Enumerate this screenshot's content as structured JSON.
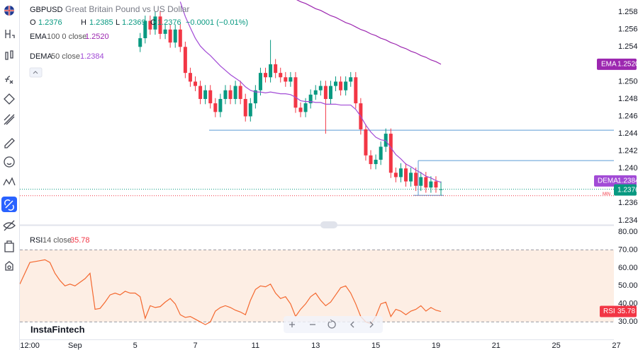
{
  "watermark": "InstaFintech",
  "chart_data": [
    {
      "type": "candlestick",
      "symbol": "GBPUSD",
      "description": "Great Britain Pound vs US Dollar",
      "ohlc_labels": [
        "O",
        "H",
        "L",
        "C"
      ],
      "change": "−0.0001 (−0.01%)",
      "up_color": "#089981",
      "down_color": "#f23645",
      "x": [
        28,
        29,
        30,
        31,
        32,
        33,
        34,
        35,
        36,
        37,
        38,
        39,
        40,
        41,
        42,
        43,
        44,
        45,
        46,
        47,
        48,
        49,
        50,
        51,
        52,
        53,
        54,
        55,
        56,
        57,
        58,
        59,
        60,
        61,
        62,
        63,
        64,
        65,
        66,
        67,
        68,
        69,
        70,
        71,
        72,
        73,
        74,
        75,
        76,
        77,
        78,
        79,
        80,
        81,
        82,
        83,
        84,
        85,
        86,
        87,
        88
      ],
      "open": [
        1.254,
        1.255,
        1.257,
        1.256,
        1.2575,
        1.2555,
        1.256,
        1.2545,
        1.256,
        1.254,
        1.251,
        1.25,
        1.2495,
        1.248,
        1.249,
        1.2475,
        1.2465,
        1.248,
        1.249,
        1.248,
        1.2495,
        1.248,
        1.246,
        1.2475,
        1.249,
        1.251,
        1.2505,
        1.252,
        1.251,
        1.2505,
        1.25,
        1.2505,
        1.247,
        1.2465,
        1.2475,
        1.2485,
        1.249,
        1.2495,
        1.248,
        1.2495,
        1.25,
        1.249,
        1.25,
        1.2505,
        1.2475,
        1.2445,
        1.2415,
        1.2405,
        1.241,
        1.2425,
        1.244,
        1.2395,
        1.239,
        1.24,
        1.2385,
        1.2395,
        1.238,
        1.239,
        1.2378,
        1.2385,
        1.2376
      ],
      "high": [
        1.2556,
        1.2576,
        1.2576,
        1.2581,
        1.2581,
        1.2566,
        1.2566,
        1.2566,
        1.2566,
        1.2546,
        1.2516,
        1.2506,
        1.2501,
        1.2496,
        1.2496,
        1.2481,
        1.2486,
        1.2496,
        1.2496,
        1.2501,
        1.2501,
        1.2486,
        1.2481,
        1.2496,
        1.2516,
        1.2516,
        1.2548,
        1.2526,
        1.2516,
        1.2511,
        1.2511,
        1.2511,
        1.2476,
        1.2481,
        1.2491,
        1.2496,
        1.2501,
        1.2501,
        1.2501,
        1.2506,
        1.2506,
        1.2506,
        1.2511,
        1.2511,
        1.2481,
        1.2451,
        1.2421,
        1.2416,
        1.2431,
        1.2446,
        1.2446,
        1.2401,
        1.2406,
        1.2406,
        1.2401,
        1.2401,
        1.2396,
        1.2396,
        1.2391,
        1.2391,
        1.2385
      ],
      "low": [
        1.2534,
        1.2544,
        1.2554,
        1.2554,
        1.2549,
        1.2549,
        1.2539,
        1.2539,
        1.2534,
        1.2504,
        1.2494,
        1.2489,
        1.2474,
        1.2474,
        1.2469,
        1.2459,
        1.2459,
        1.2474,
        1.2474,
        1.2474,
        1.2474,
        1.2454,
        1.2454,
        1.2469,
        1.2484,
        1.2499,
        1.2499,
        1.2504,
        1.2499,
        1.2494,
        1.2494,
        1.2464,
        1.2459,
        1.2459,
        1.2469,
        1.2479,
        1.2484,
        1.244,
        1.2474,
        1.2489,
        1.2484,
        1.2484,
        1.2494,
        1.2469,
        1.2439,
        1.2409,
        1.2399,
        1.2399,
        1.2404,
        1.2419,
        1.2389,
        1.2384,
        1.2384,
        1.2379,
        1.2379,
        1.2374,
        1.2374,
        1.2372,
        1.2372,
        1.2372,
        1.2369
      ],
      "close": [
        1.255,
        1.257,
        1.256,
        1.2575,
        1.2555,
        1.256,
        1.2545,
        1.256,
        1.254,
        1.251,
        1.25,
        1.2495,
        1.248,
        1.249,
        1.2475,
        1.2465,
        1.248,
        1.249,
        1.248,
        1.2495,
        1.248,
        1.246,
        1.2475,
        1.249,
        1.251,
        1.2505,
        1.252,
        1.251,
        1.2505,
        1.25,
        1.2505,
        1.247,
        1.2465,
        1.2475,
        1.2485,
        1.249,
        1.2495,
        1.248,
        1.2495,
        1.25,
        1.249,
        1.25,
        1.2505,
        1.2475,
        1.2445,
        1.2415,
        1.2405,
        1.241,
        1.2425,
        1.244,
        1.2395,
        1.239,
        1.24,
        1.2385,
        1.2395,
        1.238,
        1.239,
        1.2378,
        1.2385,
        1.2378,
        1.2376
      ],
      "series": [
        {
          "name": "EMA",
          "params": "100 0 close",
          "color": "#9c27b0",
          "values": [
            null,
            null,
            null,
            null,
            null,
            null,
            null,
            null,
            null,
            null,
            null,
            null,
            null,
            null,
            null,
            null,
            null,
            null,
            null,
            null,
            null,
            null,
            null,
            null,
            null,
            null,
            null,
            null,
            null,
            null,
            null,
            1.2595,
            1.2592,
            1.259,
            1.2587,
            1.2584,
            1.2582,
            1.2579,
            1.2576,
            1.2574,
            1.2571,
            1.2568,
            1.2566,
            1.2563,
            1.256,
            1.2558,
            1.2555,
            1.2553,
            1.255,
            1.2548,
            1.2545,
            1.2543,
            1.254,
            1.2538,
            1.2535,
            1.2533,
            1.253,
            1.2528,
            1.2525,
            1.2523,
            1.252
          ],
          "value_labels": [
            null,
            null,
            null,
            null,
            null,
            null,
            null,
            null,
            null,
            null,
            null,
            null,
            null,
            null,
            null,
            null,
            null,
            null,
            null,
            null,
            null,
            null,
            null,
            null,
            null,
            null,
            null,
            null,
            null,
            null,
            null,
            null,
            null,
            null,
            null,
            null,
            null,
            null,
            null,
            null,
            null,
            null,
            null,
            null,
            null,
            null,
            null,
            null,
            null,
            null,
            null,
            null,
            null,
            null,
            null,
            null,
            null,
            null,
            null,
            null,
            "1.2520"
          ]
        },
        {
          "name": "DEMA",
          "params": "50 close",
          "color": "#a24bd6",
          "values": [
            null,
            null,
            null,
            null,
            null,
            null,
            null,
            null,
            1.2592,
            1.2575,
            1.2562,
            1.255,
            1.2541,
            1.2535,
            1.253,
            1.2524,
            1.2518,
            1.2513,
            1.2508,
            1.2504,
            1.25,
            1.2494,
            1.249,
            1.2488,
            1.2488,
            1.2487,
            1.2488,
            1.2487,
            1.2486,
            1.2486,
            1.2485,
            1.2482,
            1.2478,
            1.2477,
            1.2477,
            1.2476,
            1.2476,
            1.2474,
            1.2474,
            1.2474,
            1.2473,
            1.2473,
            1.2473,
            1.2468,
            1.246,
            1.245,
            1.2442,
            1.2436,
            1.2433,
            1.2432,
            1.2424,
            1.2416,
            1.2411,
            1.2405,
            1.2402,
            1.2398,
            1.2395,
            1.2391,
            1.2389,
            1.2386,
            1.2384
          ]
        }
      ],
      "levels": [
        1.2444,
        1.2409
      ],
      "level_color": "#5b9bd5",
      "min_label": "MIN",
      "xlim": [
        4,
        122.5
      ],
      "ylim": [
        1.2335,
        1.2594
      ],
      "yticks": [
        {
          "value": 1.258,
          "label": "1.2580"
        },
        {
          "value": 1.256,
          "label": "1.2560"
        },
        {
          "value": 1.254,
          "label": "1.2540"
        },
        {
          "value": 1.25,
          "label": "1.2500"
        },
        {
          "value": 1.248,
          "label": "1.2480"
        },
        {
          "value": 1.246,
          "label": "1.2460"
        },
        {
          "value": 1.244,
          "label": "1.2440"
        },
        {
          "value": 1.242,
          "label": "1.2420"
        },
        {
          "value": 1.24,
          "label": "1.2400"
        },
        {
          "value": 1.236,
          "label": "1.2360"
        },
        {
          "value": 1.234,
          "label": "1.2340"
        }
      ]
    },
    {
      "type": "line",
      "x": [
        4,
        5,
        6,
        7,
        8,
        9,
        10,
        11,
        12,
        13,
        14,
        15,
        16,
        17,
        18,
        19,
        20,
        21,
        22,
        23,
        24,
        25,
        26,
        27,
        28,
        29,
        30,
        31,
        32,
        33,
        34,
        35,
        36,
        37,
        38,
        39,
        40,
        41,
        42,
        43,
        44,
        45,
        46,
        47,
        48,
        49,
        50,
        51,
        52,
        53,
        54,
        55,
        56,
        57,
        58,
        59,
        60,
        61,
        62,
        63,
        64,
        65,
        66,
        67,
        68,
        69,
        70,
        71,
        72,
        73,
        74,
        75,
        76,
        77,
        78,
        79,
        80,
        81,
        82,
        83,
        84,
        85,
        86,
        87,
        88
      ],
      "series": [
        {
          "name": "RSI",
          "params": "14 close",
          "color": "#f4682f",
          "values": [
            51,
            57,
            63,
            63.5,
            64,
            64.5,
            63,
            57,
            53,
            50,
            51,
            50,
            52,
            54,
            57,
            37,
            37.5,
            41,
            45,
            46,
            45,
            47,
            46,
            46,
            44,
            32,
            39,
            38,
            38.5,
            41,
            43,
            40,
            34,
            32.5,
            33,
            31.5,
            30,
            28.5,
            30,
            36,
            38,
            39,
            38,
            36.5,
            35.5,
            34,
            42,
            48,
            50,
            49.5,
            51,
            46,
            43,
            44,
            40,
            33,
            37,
            40,
            44,
            46,
            42,
            39,
            41,
            45,
            49,
            50,
            46,
            40,
            33,
            30,
            29,
            33,
            40,
            41,
            33,
            37,
            36,
            34,
            36,
            37,
            39,
            36,
            38,
            36.5,
            35.78
          ]
        }
      ],
      "bands": [
        30,
        70
      ],
      "band_color": "#fdeee4",
      "xlim": [
        4,
        122.5
      ],
      "ylim": [
        20.3,
        83.1
      ],
      "yticks": [
        {
          "value": 80,
          "label": "80.00"
        },
        {
          "value": 70,
          "label": "70.00"
        },
        {
          "value": 60,
          "label": "60.00"
        },
        {
          "value": 50,
          "label": "50.00"
        },
        {
          "value": 40,
          "label": "40.00"
        },
        {
          "value": 30,
          "label": "30.00"
        }
      ],
      "xticks": [
        {
          "value": 6,
          "label": "12:00"
        },
        {
          "value": 15,
          "label": "Sep"
        },
        {
          "value": 27,
          "label": "5"
        },
        {
          "value": 39,
          "label": "7"
        },
        {
          "value": 51,
          "label": "11"
        },
        {
          "value": 63,
          "label": "13"
        },
        {
          "value": 75,
          "label": "15"
        },
        {
          "value": 87,
          "label": "19"
        },
        {
          "value": 99,
          "label": "21"
        },
        {
          "value": 111,
          "label": "25"
        },
        {
          "value": 123,
          "label": "27"
        }
      ]
    }
  ]
}
